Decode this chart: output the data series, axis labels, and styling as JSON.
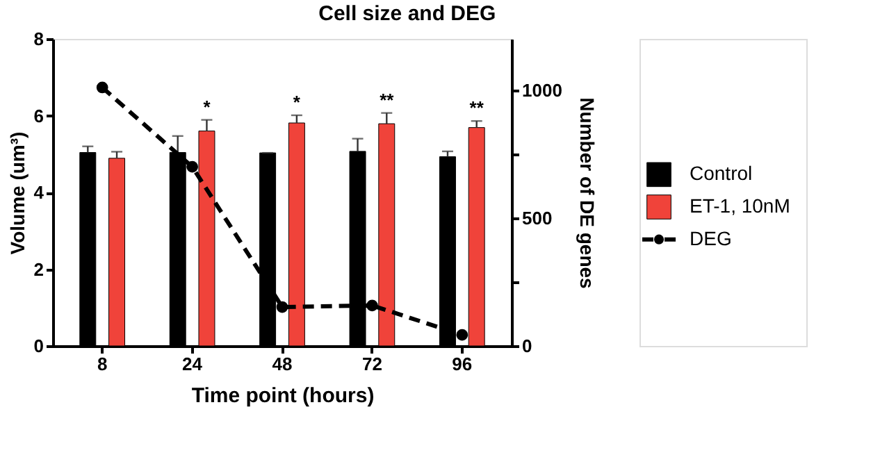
{
  "chart_data": {
    "type": "bar",
    "title": "Cell size and DEG",
    "xlabel": "Time point (hours)",
    "ylabel": "Volume (um³)",
    "y2label": "Number of DE genes",
    "categories": [
      "8",
      "24",
      "48",
      "72",
      "96"
    ],
    "series": [
      {
        "name": "Control",
        "color": "#000000",
        "values": [
          5.04,
          5.04,
          5.03,
          5.07,
          4.93
        ],
        "errors": [
          [
            5.04,
            5.2
          ],
          [
            5.04,
            5.47
          ],
          [
            5.03,
            5.03
          ],
          [
            5.07,
            5.4
          ],
          [
            4.93,
            5.07
          ]
        ]
      },
      {
        "name": "ET-1, 10nM",
        "color": "#f0433a",
        "values": [
          4.89,
          5.6,
          5.81,
          5.79,
          5.69
        ],
        "value_labels": [
          null,
          "*",
          "*",
          "**",
          "**"
        ],
        "errors": [
          [
            4.89,
            5.06
          ],
          [
            5.6,
            5.89
          ],
          [
            5.81,
            6.01
          ],
          [
            5.79,
            6.07
          ],
          [
            5.69,
            5.86
          ]
        ]
      },
      {
        "name": "DEG",
        "type": "line",
        "axis": "y2",
        "color": "#000000",
        "marker": "circle",
        "line_style": "dashed",
        "values": [
          1010,
          700,
          152,
          158,
          43
        ]
      }
    ],
    "ylim": [
      0,
      8
    ],
    "yticks": [
      0,
      2,
      4,
      6,
      8
    ],
    "y2lim": [
      0,
      1200
    ],
    "y2ticks": [
      0,
      {
        "value": 250,
        "label": null
      },
      500,
      {
        "value": 750,
        "label": null
      },
      1000
    ],
    "grid": false,
    "legend": "right"
  }
}
